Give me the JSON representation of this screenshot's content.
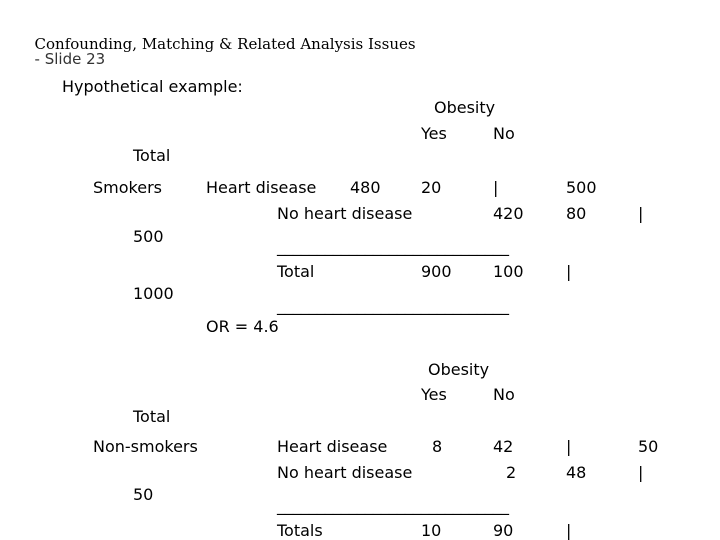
{
  "slide_title": "Confounding, Matching & Related Analysis Issues",
  "slide_number": "- Slide 23",
  "intro": "Hypothetical example:",
  "smokers_table": {
    "obesity_header": "Obesity",
    "col_yes": "Yes",
    "col_no": "No",
    "total_label": "Total",
    "group_label": "Smokers",
    "row1_label": "Heart disease",
    "row1_yes": "480",
    "row1_no": "20",
    "row1_sep": "|",
    "row1_total": "500",
    "row2_label": "No heart disease",
    "row2_yes": "420",
    "row2_no": "80",
    "row2_sep": "|",
    "row2_total": "500",
    "rule1": "_____________________________",
    "total_row_label": "Total",
    "total_yes": "900",
    "total_no": "100",
    "total_sep": "|",
    "grand_total": "1000",
    "rule2": "_____________________________",
    "odds_ratio": "OR = 4.6"
  },
  "nonsmokers_table": {
    "obesity_header": "Obesity",
    "col_yes": "Yes",
    "col_no": "No",
    "total_label": "Total",
    "group_label": "Non-smokers",
    "row1_label": "Heart disease",
    "row1_yes": "8",
    "row1_no": "42",
    "row1_sep": "|",
    "row1_total": "50",
    "row2_label": "No heart disease",
    "row2_yes": "2",
    "row2_no": "48",
    "row2_sep": "|",
    "row2_total": "50",
    "rule1": "_____________________________",
    "total_row_label": "Totals",
    "total_yes": "10",
    "total_no": "90",
    "total_sep": "|"
  }
}
